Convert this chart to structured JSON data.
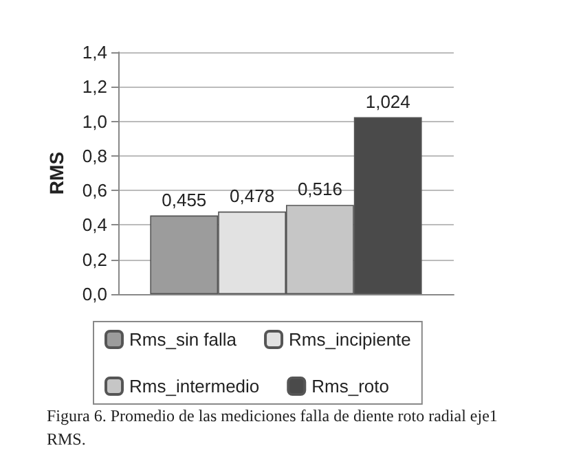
{
  "chart_data": {
    "type": "bar",
    "categories": [
      null
    ],
    "series": [
      {
        "name": "Rms_sin falla",
        "color": "#9c9c9c",
        "values": [
          0.455
        ],
        "value_labels": [
          "0,455"
        ]
      },
      {
        "name": "Rms_incipiente",
        "color": "#e2e2e2",
        "values": [
          0.478
        ],
        "value_labels": [
          "0,478"
        ]
      },
      {
        "name": "Rms_intermedio",
        "color": "#c6c6c6",
        "values": [
          0.516
        ],
        "value_labels": [
          "0,516"
        ]
      },
      {
        "name": "Rms_roto",
        "color": "#4a4a4a",
        "values": [
          1.024
        ],
        "value_labels": [
          "1,024"
        ]
      }
    ],
    "ylabel": "RMS",
    "ylim": [
      0,
      1.4
    ],
    "yticks": [
      {
        "value": 0,
        "label": "0,0"
      },
      {
        "value": 0.2,
        "label": "0,2"
      },
      {
        "value": 0.4,
        "label": "0,4"
      },
      {
        "value": 0.6,
        "label": "0,6"
      },
      {
        "value": 0.8,
        "label": "0,8"
      },
      {
        "value": 1,
        "label": "1,0"
      },
      {
        "value": 1.2,
        "label": "1,2"
      },
      {
        "value": 1.4,
        "label": "1,4"
      }
    ],
    "grid": "y",
    "legend": "bottom",
    "annotations": [
      "Figura 6. Promedio de las mediciones falla de diente roto radial eje1 RMS."
    ]
  }
}
